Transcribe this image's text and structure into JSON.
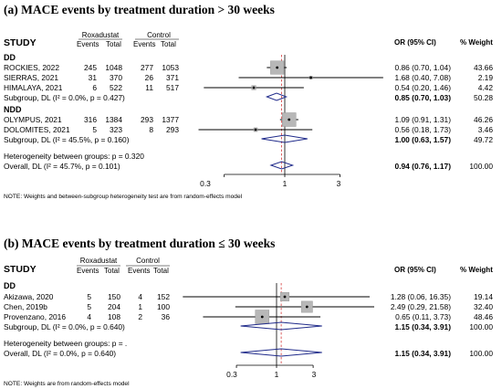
{
  "chart_data": [
    {
      "type": "forest",
      "title": "(a) MACE events by treatment duration > 30 weeks",
      "columns": {
        "study": "STUDY",
        "treatment": "Roxadustat",
        "control": "Control",
        "events": "Events",
        "total": "Total",
        "effect": "OR (95% CI)",
        "weight": "% Weight"
      },
      "xscale": "log",
      "xticks": [
        0.3,
        1,
        3
      ],
      "xlim": [
        0.1,
        10
      ],
      "groups": [
        {
          "label": "DD",
          "studies": [
            {
              "name": "ROCKIES, 2022",
              "t_events": "245",
              "t_total": "1048",
              "c_events": "277",
              "c_total": "1053",
              "or": 0.86,
              "lo": 0.7,
              "hi": 1.04,
              "text": "0.86 (0.70, 1.04)",
              "weight": "43.66",
              "w": 43.66
            },
            {
              "name": "SIERRAS, 2021",
              "t_events": "31",
              "t_total": "370",
              "c_events": "26",
              "c_total": "371",
              "or": 1.68,
              "lo": 0.4,
              "hi": 7.08,
              "text": "1.68 (0.40, 7.08)",
              "weight": "2.19",
              "w": 2.19
            },
            {
              "name": "HIMALAYA, 2021",
              "t_events": "6",
              "t_total": "522",
              "c_events": "11",
              "c_total": "517",
              "or": 0.54,
              "lo": 0.2,
              "hi": 1.46,
              "text": "0.54 (0.20, 1.46)",
              "weight": "4.42",
              "w": 4.42
            }
          ],
          "subtotal": {
            "label": "Subgroup, DL (I² = 0.0%, p = 0.427)",
            "or": 0.85,
            "lo": 0.7,
            "hi": 1.03,
            "text": "0.85 (0.70, 1.03)",
            "weight": "50.28"
          }
        },
        {
          "label": "NDD",
          "studies": [
            {
              "name": "OLYMPUS, 2021",
              "t_events": "316",
              "t_total": "1384",
              "c_events": "293",
              "c_total": "1377",
              "or": 1.09,
              "lo": 0.91,
              "hi": 1.31,
              "text": "1.09 (0.91, 1.31)",
              "weight": "46.26",
              "w": 46.26
            },
            {
              "name": "DOLOMITES, 2021",
              "t_events": "5",
              "t_total": "323",
              "c_events": "8",
              "c_total": "293",
              "or": 0.56,
              "lo": 0.18,
              "hi": 1.73,
              "text": "0.56 (0.18, 1.73)",
              "weight": "3.46",
              "w": 3.46
            }
          ],
          "subtotal": {
            "label": "Subgroup, DL (I² = 45.5%, p = 0.160)",
            "or": 1.0,
            "lo": 0.63,
            "hi": 1.57,
            "text": "1.00 (0.63, 1.57)",
            "weight": "49.72"
          }
        }
      ],
      "heterogeneity": "Heterogeneity between groups: p = 0.320",
      "overall": {
        "label": "Overall, DL (I² = 45.7%, p = 0.101)",
        "or": 0.94,
        "lo": 0.76,
        "hi": 1.17,
        "text": "0.94 (0.76, 1.17)",
        "weight": "100.00"
      },
      "note": "NOTE: Weights and between-subgroup heterogeneity test are from random-effects model"
    },
    {
      "type": "forest",
      "title": "(b) MACE events by treatment duration ≤ 30 weeks",
      "columns": {
        "study": "STUDY",
        "treatment": "Roxadustat",
        "control": "Control",
        "events": "Events",
        "total": "Total",
        "effect": "OR (95% CI)",
        "weight": "% Weight"
      },
      "xscale": "log",
      "xticks": [
        0.3,
        1,
        3
      ],
      "xlim": [
        0.05,
        20
      ],
      "groups": [
        {
          "label": "DD",
          "studies": [
            {
              "name": "Akizawa, 2020",
              "t_events": "5",
              "t_total": "150",
              "c_events": "4",
              "c_total": "152",
              "or": 1.28,
              "lo": 0.06,
              "hi": 16.35,
              "text": "1.28 (0.06, 16.35)",
              "weight": "19.14",
              "w": 19.14
            },
            {
              "name": "Chen, 2019b",
              "t_events": "5",
              "t_total": "204",
              "c_events": "1",
              "c_total": "100",
              "or": 2.49,
              "lo": 0.29,
              "hi": 21.58,
              "text": "2.49 (0.29, 21.58)",
              "weight": "32.40",
              "w": 32.4
            },
            {
              "name": "Provenzano, 2016",
              "t_events": "4",
              "t_total": "108",
              "c_events": "2",
              "c_total": "36",
              "or": 0.65,
              "lo": 0.11,
              "hi": 3.73,
              "text": "0.65 (0.11, 3.73)",
              "weight": "48.46",
              "w": 48.46
            }
          ],
          "subtotal": {
            "label": "Subgroup, DL (I² = 0.0%, p = 0.640)",
            "or": 1.15,
            "lo": 0.34,
            "hi": 3.91,
            "text": "1.15 (0.34, 3.91)",
            "weight": "100.00"
          }
        }
      ],
      "heterogeneity": "Heterogeneity between groups: p = .",
      "overall": {
        "label": "Overall, DL (I² = 0.0%, p = 0.640)",
        "or": 1.15,
        "lo": 0.34,
        "hi": 3.91,
        "text": "1.15 (0.34, 3.91)",
        "weight": "100.00"
      },
      "note": "NOTE: Weights are from random-effects model"
    }
  ]
}
